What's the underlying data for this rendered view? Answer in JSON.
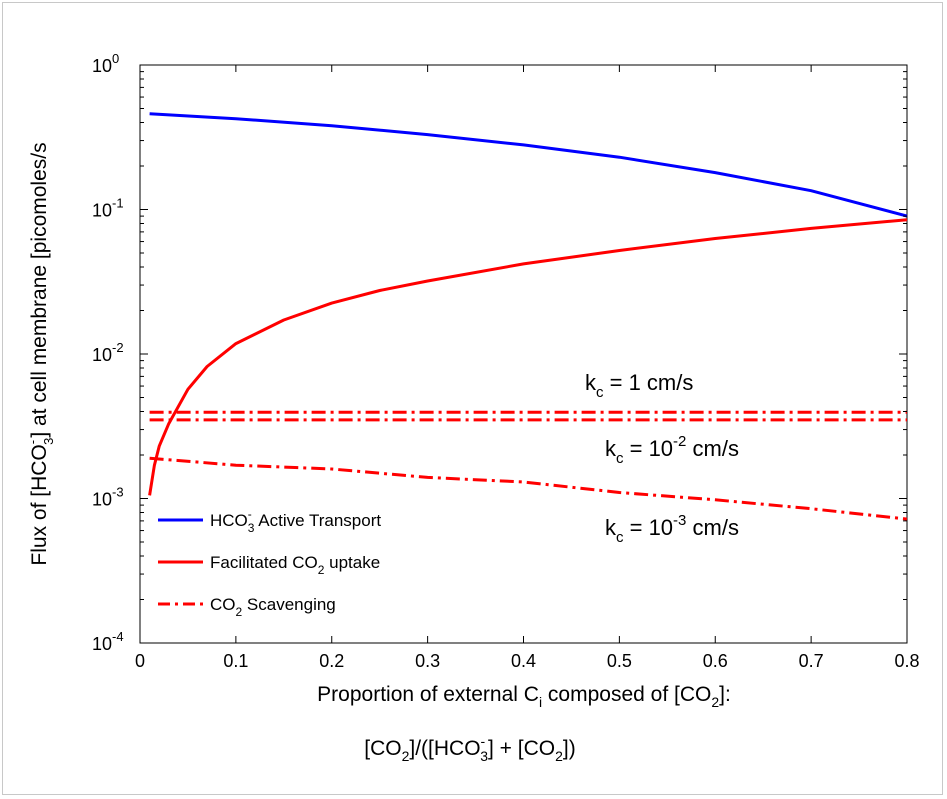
{
  "chart_data": {
    "type": "line",
    "ylog": true,
    "xlim": [
      0,
      0.8
    ],
    "ylim": [
      0.0001,
      1
    ],
    "x_ticks": [
      "0",
      "0.1",
      "0.2",
      "0.3",
      "0.4",
      "0.5",
      "0.6",
      "0.7",
      "0.8"
    ],
    "y_ticks": [
      {
        "base": "10",
        "exp": "-4"
      },
      {
        "base": "10",
        "exp": "-3"
      },
      {
        "base": "10",
        "exp": "-2"
      },
      {
        "base": "10",
        "exp": "-1"
      },
      {
        "base": "10",
        "exp": "0"
      }
    ],
    "ylabel": {
      "pre": "Flux of [HCO",
      "sup": "-",
      "sub": "3",
      "post": "] at cell membrane [picomoles/s"
    },
    "xlabel": {
      "pre": "Proportion of external C",
      "sub": "i",
      "mid": " composed of [CO",
      "sub2": "2",
      "post": "]:"
    },
    "xlabel2": {
      "p1": "[CO",
      "s1": "2",
      "p2": "]/([HCO",
      "sup": "-",
      "s2": "3",
      "p3": "] + [CO",
      "s3": "2",
      "p4": "])"
    },
    "legend": [
      {
        "pre": "HCO",
        "sup": "-",
        "sub": "3",
        "post": " Active Transport",
        "color": "#0000ff",
        "dash": "solid"
      },
      {
        "pre": "Facilitated CO",
        "sub": "2",
        "post": " uptake",
        "color": "#ff0000",
        "dash": "solid"
      },
      {
        "pre": "CO",
        "sub": "2",
        "post": " Scavenging",
        "color": "#ff0000",
        "dash": "dashdot"
      }
    ],
    "annotations": [
      {
        "k": "k",
        "ksub": "c",
        "eq": " = 1 cm/s",
        "sup": "",
        "tail": ""
      },
      {
        "k": "k",
        "ksub": "c",
        "eq": " = 10",
        "sup": "-2",
        "tail": " cm/s"
      },
      {
        "k": "k",
        "ksub": "c",
        "eq": " = 10",
        "sup": "-3",
        "tail": " cm/s"
      }
    ],
    "series": [
      {
        "color": "#0000ff",
        "dash": "solid",
        "x": [
          0.01,
          0.1,
          0.2,
          0.3,
          0.4,
          0.5,
          0.6,
          0.7,
          0.8
        ],
        "y": [
          0.46,
          0.425,
          0.38,
          0.33,
          0.28,
          0.23,
          0.18,
          0.135,
          0.09
        ]
      },
      {
        "color": "#ff0000",
        "dash": "solid",
        "x": [
          0.01,
          0.015,
          0.02,
          0.03,
          0.05,
          0.07,
          0.1,
          0.15,
          0.2,
          0.25,
          0.3,
          0.4,
          0.5,
          0.6,
          0.7,
          0.8
        ],
        "y": [
          0.00105,
          0.0017,
          0.0023,
          0.0033,
          0.0057,
          0.0082,
          0.0118,
          0.0172,
          0.0225,
          0.0275,
          0.032,
          0.042,
          0.052,
          0.063,
          0.074,
          0.085
        ]
      },
      {
        "color": "#ff0000",
        "dash": "dashdot",
        "x": [
          0.01,
          0.8
        ],
        "y": [
          0.00395,
          0.00395
        ]
      },
      {
        "color": "#ff0000",
        "dash": "dashdot",
        "x": [
          0.01,
          0.8
        ],
        "y": [
          0.0035,
          0.0035
        ]
      },
      {
        "color": "#ff0000",
        "dash": "dashdot",
        "x": [
          0.01,
          0.1,
          0.2,
          0.3,
          0.4,
          0.5,
          0.6,
          0.7,
          0.8
        ],
        "y": [
          0.0019,
          0.0017,
          0.0016,
          0.0014,
          0.0013,
          0.0011,
          0.00098,
          0.00085,
          0.00072
        ]
      }
    ]
  }
}
